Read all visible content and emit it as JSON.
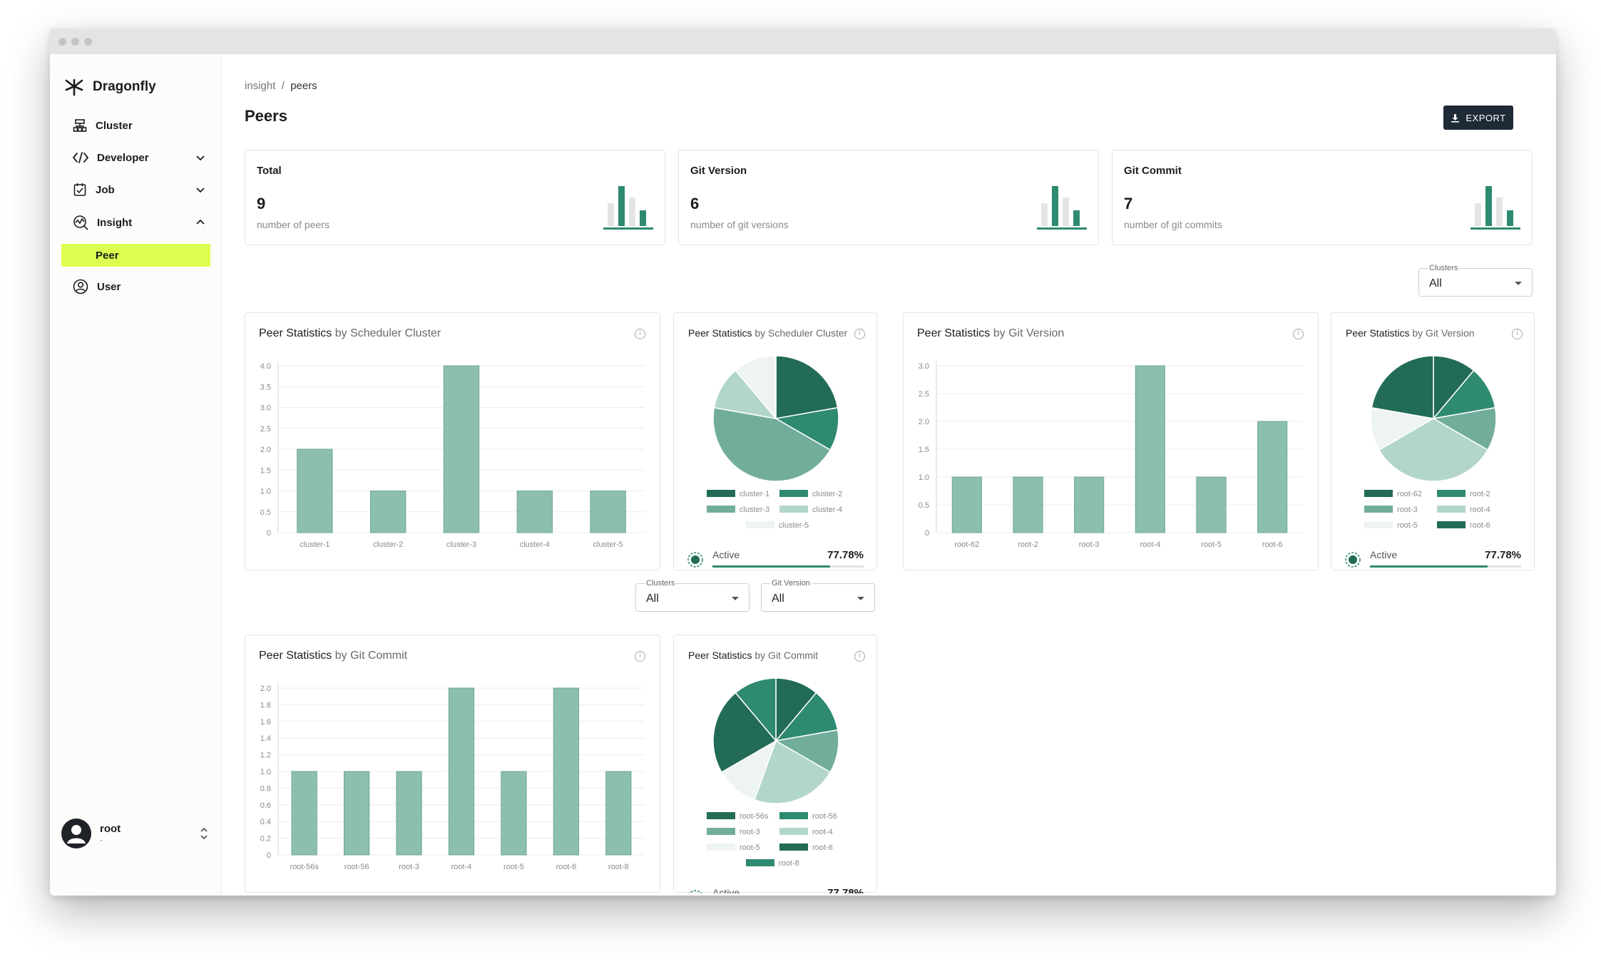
{
  "window": {
    "brand": "Dragonfly"
  },
  "sidebar": {
    "items": [
      {
        "label": "Cluster",
        "icon": "cluster-icon"
      },
      {
        "label": "Developer",
        "icon": "code-icon"
      },
      {
        "label": "Job",
        "icon": "job-icon"
      },
      {
        "label": "Insight",
        "icon": "insight-icon"
      },
      {
        "label": "Peer"
      },
      {
        "label": "User",
        "icon": "user-circle-icon"
      }
    ],
    "user": {
      "name": "root",
      "sub": "-"
    }
  },
  "breadcrumb": {
    "parent": "insight",
    "separator": "/",
    "current": "peers"
  },
  "page": {
    "title": "Peers",
    "export_label": "EXPORT"
  },
  "stats": [
    {
      "title": "Total",
      "value": "9",
      "sub": "number of peers"
    },
    {
      "title": "Git Version",
      "value": "6",
      "sub": "number of git versions"
    },
    {
      "title": "Git Commit",
      "value": "7",
      "sub": "number of git commits"
    }
  ],
  "filters": {
    "top_clusters": {
      "label": "Clusters",
      "value": "All"
    },
    "mid_clusters": {
      "label": "Clusters",
      "value": "All"
    },
    "mid_git_version": {
      "label": "Git Version",
      "value": "All"
    }
  },
  "colors": {
    "dark": "#226b57",
    "mid": "#2e8a70",
    "bar": "#8dbfad",
    "bar_stroke": "#6aa893",
    "accent": "#dcfe50"
  },
  "active": {
    "label": "Active",
    "value": "77.78%",
    "fraction": 0.7778
  },
  "chart_data": [
    {
      "type": "bar",
      "title": "Peer Statistics",
      "subtitle": "by Scheduler Cluster",
      "categories": [
        "cluster-1",
        "cluster-2",
        "cluster-3",
        "cluster-4",
        "cluster-5"
      ],
      "values": [
        2,
        1,
        4,
        1,
        1
      ],
      "yticks": [
        "0",
        "0.5",
        "1.0",
        "1.5",
        "2.0",
        "2.5",
        "3.0",
        "3.5",
        "4.0"
      ],
      "ylim": [
        0,
        4
      ]
    },
    {
      "type": "pie",
      "title": "Peer Statistics",
      "subtitle": "by Scheduler Cluster",
      "labels": [
        "cluster-1",
        "cluster-2",
        "cluster-3",
        "cluster-4",
        "cluster-5"
      ],
      "values": [
        2,
        1,
        4,
        1,
        1
      ],
      "colors": [
        "#226b57",
        "#2e8a70",
        "#72ad9c",
        "#b3d6cb",
        "#eef4f1"
      ]
    },
    {
      "type": "bar",
      "title": "Peer Statistics",
      "subtitle": "by Git Version",
      "categories": [
        "root-62",
        "root-2",
        "root-3",
        "root-4",
        "root-5",
        "root-6"
      ],
      "values": [
        1,
        1,
        1,
        3,
        1,
        2
      ],
      "yticks": [
        "0",
        "0.5",
        "1.0",
        "1.5",
        "2.0",
        "2.5",
        "3.0"
      ],
      "ylim": [
        0,
        3
      ]
    },
    {
      "type": "pie",
      "title": "Peer Statistics",
      "subtitle": "by Git Version",
      "labels": [
        "root-62",
        "root-2",
        "root-3",
        "root-4",
        "root-5",
        "root-6"
      ],
      "values": [
        1,
        1,
        1,
        3,
        1,
        2
      ],
      "colors": [
        "#226b57",
        "#2e8a70",
        "#72ad9c",
        "#b3d6cb",
        "#eef4f1",
        "#226b57"
      ]
    },
    {
      "type": "bar",
      "title": "Peer Statistics",
      "subtitle": "by Git Commit",
      "categories": [
        "root-56s",
        "root-56",
        "root-3",
        "root-4",
        "root-5",
        "root-6",
        "root-8"
      ],
      "values": [
        1,
        1,
        1,
        2,
        1,
        2,
        1
      ],
      "yticks": [
        "0",
        "0.2",
        "0.4",
        "0.6",
        "0.8",
        "1.0",
        "1.2",
        "1.4",
        "1.6",
        "1.8",
        "2.0"
      ],
      "ylim": [
        0,
        2
      ]
    },
    {
      "type": "pie",
      "title": "Peer Statistics",
      "subtitle": "by Git Commit",
      "labels": [
        "root-56s",
        "root-56",
        "root-3",
        "root-4",
        "root-5",
        "root-6",
        "root-8"
      ],
      "values": [
        1,
        1,
        1,
        2,
        1,
        2,
        1
      ],
      "colors": [
        "#226b57",
        "#2e8a70",
        "#72ad9c",
        "#b3d6cb",
        "#eef4f1",
        "#226b57",
        "#2e8a70"
      ]
    }
  ]
}
